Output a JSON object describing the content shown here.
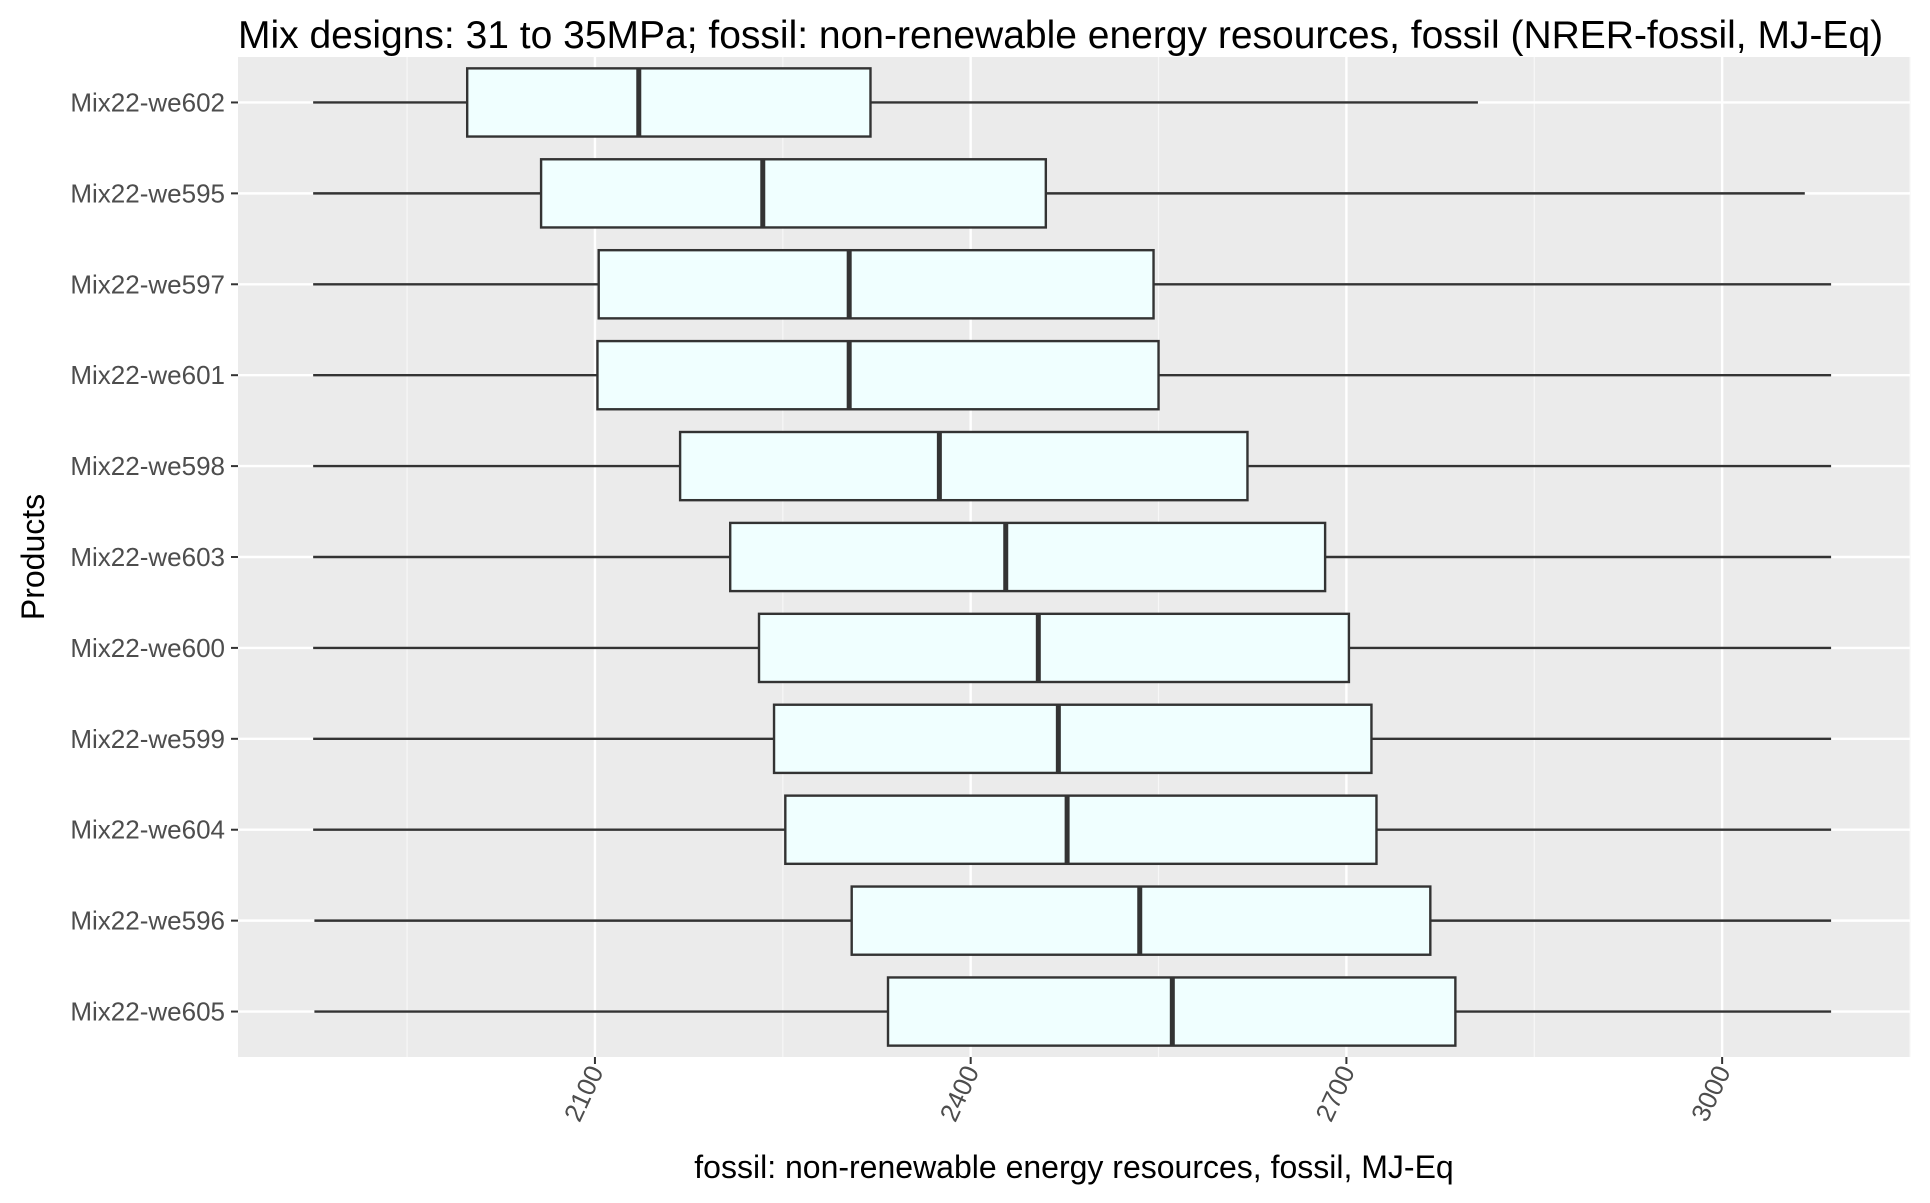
{
  "chart_data": {
    "type": "boxplot",
    "orientation": "horizontal",
    "title": "Mix designs: 31 to 35MPa; fossil: non-renewable energy resources, fossil (NRER-fossil, MJ-Eq)",
    "xlabel": "fossil: non-renewable energy resources, fossil, MJ-Eq",
    "ylabel": "Products",
    "xlim": [
      1815,
      3150
    ],
    "xticks": [
      2100,
      2400,
      2700,
      3000
    ],
    "xtick_labels": [
      "2100",
      "2400",
      "2700",
      "3000"
    ],
    "x_tick_rotation": 65,
    "grid": true,
    "legend": "none",
    "colors": {
      "panel": "#EBEBEB",
      "grid_major": "#FFFFFF",
      "grid_minor": "#F7F7F7",
      "box_fill": "#F0FFFF",
      "box_line": "#333333"
    },
    "categories": [
      "Mix22-we602",
      "Mix22-we595",
      "Mix22-we597",
      "Mix22-we601",
      "Mix22-we598",
      "Mix22-we603",
      "Mix22-we600",
      "Mix22-we599",
      "Mix22-we604",
      "Mix22-we596",
      "Mix22-we605"
    ],
    "boxes": [
      {
        "name": "Mix22-we602",
        "min": 1875,
        "q1": 1998,
        "median": 2135,
        "q3": 2320,
        "max": 2805
      },
      {
        "name": "Mix22-we595",
        "min": 1875,
        "q1": 2057,
        "median": 2234,
        "q3": 2460,
        "max": 3066
      },
      {
        "name": "Mix22-we597",
        "min": 1875,
        "q1": 2103,
        "median": 2303,
        "q3": 2546,
        "max": 3087
      },
      {
        "name": "Mix22-we601",
        "min": 1875,
        "q1": 2102,
        "median": 2303,
        "q3": 2550,
        "max": 3087
      },
      {
        "name": "Mix22-we598",
        "min": 1875,
        "q1": 2168,
        "median": 2375,
        "q3": 2621,
        "max": 3087
      },
      {
        "name": "Mix22-we603",
        "min": 1875,
        "q1": 2208,
        "median": 2428,
        "q3": 2683,
        "max": 3087
      },
      {
        "name": "Mix22-we600",
        "min": 1875,
        "q1": 2231,
        "median": 2454,
        "q3": 2702,
        "max": 3087
      },
      {
        "name": "Mix22-we599",
        "min": 1875,
        "q1": 2243,
        "median": 2470,
        "q3": 2720,
        "max": 3087
      },
      {
        "name": "Mix22-we604",
        "min": 1875,
        "q1": 2252,
        "median": 2477,
        "q3": 2724,
        "max": 3087
      },
      {
        "name": "Mix22-we596",
        "min": 1876,
        "q1": 2305,
        "median": 2535,
        "q3": 2767,
        "max": 3087
      },
      {
        "name": "Mix22-we605",
        "min": 1876,
        "q1": 2334,
        "median": 2561,
        "q3": 2787,
        "max": 3087
      }
    ]
  }
}
